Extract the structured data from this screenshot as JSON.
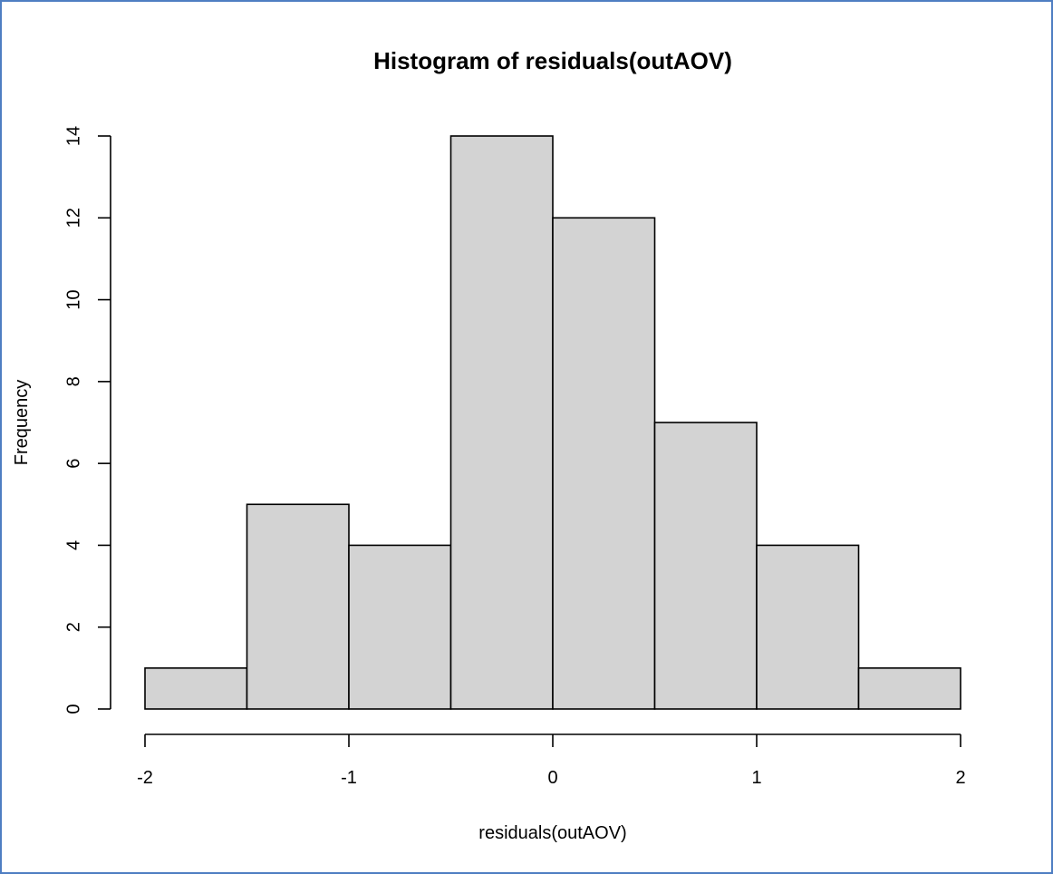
{
  "chart_data": {
    "type": "bar",
    "title": "Histogram of residuals(outAOV)",
    "xlabel": "residuals(outAOV)",
    "ylabel": "Frequency",
    "bins": [
      {
        "from": -2.0,
        "to": -1.5,
        "value": 1
      },
      {
        "from": -1.5,
        "to": -1.0,
        "value": 5
      },
      {
        "from": -1.0,
        "to": -0.5,
        "value": 4
      },
      {
        "from": -0.5,
        "to": 0.0,
        "value": 14
      },
      {
        "from": 0.0,
        "to": 0.5,
        "value": 12
      },
      {
        "from": 0.5,
        "to": 1.0,
        "value": 7
      },
      {
        "from": 1.0,
        "to": 1.5,
        "value": 4
      },
      {
        "from": 1.5,
        "to": 2.0,
        "value": 1
      }
    ],
    "xlim": [
      -2,
      2
    ],
    "ylim": [
      0,
      14
    ],
    "xticks": [
      -2,
      -1,
      0,
      1,
      2
    ],
    "yticks": [
      0,
      2,
      4,
      6,
      8,
      10,
      12,
      14
    ],
    "bar_fill": "#d3d3d3",
    "bar_stroke": "#000000",
    "frame_color": "#4f7ec2",
    "grid": false,
    "legend": "none"
  }
}
